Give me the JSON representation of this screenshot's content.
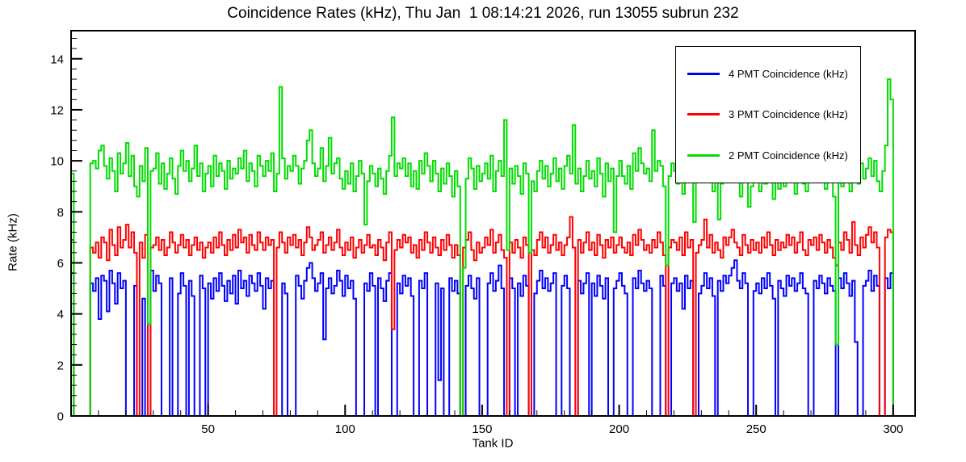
{
  "chart_data": {
    "type": "line",
    "subtype": "step-histogram",
    "title": "Coincidence Rates (kHz), Thu Jan  1 08:14:21 2026, run 13055 subrun 232",
    "xlabel": "Tank ID",
    "ylabel": "Rate (kHz)",
    "xlim": [
      0,
      308
    ],
    "ylim": [
      0,
      15.1
    ],
    "xticks_major": [
      50,
      100,
      150,
      200,
      250,
      300
    ],
    "xtick_minor_step": 10,
    "yticks_major": [
      0,
      2,
      4,
      6,
      8,
      10,
      12,
      14
    ],
    "ytick_minor_step": 0.4,
    "x_bin_width": 1,
    "grid": false,
    "legend_position": "top-right",
    "series": [
      {
        "id": "4pmt",
        "name": "4 PMT Coincidence (kHz)",
        "color": "#0000ff",
        "values": [
          5.6,
          0,
          0,
          0,
          0,
          0,
          0,
          5.2,
          4.9,
          5.4,
          3.8,
          5.5,
          5.3,
          4.1,
          5.7,
          5.2,
          4.4,
          5.6,
          5.0,
          5.3,
          0,
          0,
          0,
          5.1,
          0,
          0,
          4.6,
          0,
          0,
          5.7,
          4.9,
          5.5,
          5.2,
          0,
          0,
          0,
          5.4,
          0,
          0,
          4.8,
          5.6,
          5.1,
          0,
          5.3,
          4.7,
          0,
          0,
          5.5,
          5.0,
          0,
          5.2,
          4.6,
          5.4,
          4.9,
          5.6,
          5.1,
          4.5,
          5.3,
          4.8,
          5.5,
          4.4,
          5.7,
          5.0,
          5.3,
          4.7,
          5.5,
          5.2,
          4.9,
          5.6,
          5.1,
          4.2,
          5.4,
          5.0,
          5.3,
          0,
          0,
          0,
          5.2,
          4.8,
          0,
          0,
          0,
          5.5,
          5.1,
          4.6,
          5.3,
          5.8,
          6.0,
          5.4,
          4.9,
          5.2,
          5.6,
          3.0,
          5.0,
          5.4,
          4.8,
          5.1,
          5.7,
          5.3,
          4.7,
          5.5,
          5.0,
          5.3,
          4.6,
          0,
          0,
          0,
          5.2,
          4.9,
          5.6,
          5.1,
          0,
          5.4,
          5.0,
          4.5,
          5.3,
          5.6,
          0,
          0,
          5.2,
          4.8,
          5.5,
          5.1,
          5.4,
          4.7,
          0,
          0,
          5.3,
          5.0,
          5.6,
          0,
          0,
          0,
          5.2,
          1.4,
          5.0,
          0,
          0,
          5.4,
          4.9,
          5.3,
          4.8,
          0,
          0,
          5.1,
          5.5,
          5.0,
          4.6,
          5.4,
          0,
          0,
          0,
          5.2,
          5.6,
          4.9,
          5.3,
          5.9,
          5.0,
          0,
          0,
          5.4,
          5.0,
          0,
          5.2,
          4.7,
          5.5,
          5.1,
          0,
          0,
          4.8,
          5.3,
          5.7,
          5.0,
          5.4,
          4.9,
          5.2,
          5.6,
          0,
          0,
          5.1,
          5.5,
          5.0,
          0,
          0,
          0,
          5.3,
          4.8,
          5.2,
          5.6,
          0,
          5.2,
          4.7,
          5.5,
          5.1,
          4.6,
          5.4,
          0,
          0,
          5.0,
          5.3,
          5.6,
          5.1,
          4.8,
          0,
          0,
          5.4,
          5.0,
          5.7,
          5.2,
          4.9,
          5.3,
          5.0,
          0,
          0,
          0,
          5.5,
          5.1,
          0,
          0,
          5.2,
          5.4,
          4.9,
          5.2,
          4.2,
          5.5,
          5.0,
          5.3,
          0,
          0,
          4.8,
          5.1,
          5.6,
          5.0,
          5.4,
          4.7,
          0,
          5.3,
          4.9,
          5.5,
          5.2,
          5.5,
          5.8,
          6.1,
          5.3,
          5.0,
          5.6,
          5.2,
          0,
          0,
          4.9,
          5.2,
          4.8,
          5.4,
          5.0,
          5.6,
          5.1,
          4.6,
          0,
          5.3,
          5.0,
          4.7,
          5.5,
          5.1,
          5.4,
          4.9,
          5.2,
          5.6,
          5.0,
          4.8,
          0,
          0,
          5.3,
          5.0,
          5.5,
          5.2,
          4.8,
          5.4,
          5.1,
          4.9,
          0,
          5.4,
          5.0,
          5.6,
          5.2,
          4.7,
          5.3,
          2.9,
          0,
          0,
          5.1,
          5.3,
          5.7,
          4.9,
          5.5,
          5.1,
          0,
          0,
          5.4,
          5.0,
          5.6
        ]
      },
      {
        "id": "3pmt",
        "name": "3 PMT Coincidence (kHz)",
        "color": "#ff0000",
        "values": [
          6.9,
          0,
          0,
          0,
          0,
          0,
          0,
          6.6,
          6.4,
          6.8,
          6.2,
          7.0,
          6.8,
          6.1,
          7.3,
          6.7,
          6.3,
          7.4,
          6.6,
          6.9,
          7.5,
          6.6,
          7.2,
          6.4,
          0,
          6.8,
          6.2,
          7.1,
          0,
          6.6,
          6.7,
          7.0,
          6.5,
          6.9,
          6.3,
          6.6,
          7.2,
          6.8,
          6.4,
          6.7,
          7.1,
          6.6,
          6.9,
          6.3,
          6.7,
          7.0,
          6.5,
          6.8,
          6.2,
          6.6,
          6.8,
          6.4,
          7.0,
          6.6,
          7.2,
          6.7,
          6.3,
          6.9,
          6.5,
          7.1,
          6.6,
          7.3,
          6.8,
          7.0,
          6.4,
          7.1,
          6.7,
          6.5,
          7.2,
          6.8,
          6.5,
          7.0,
          6.7,
          6.9,
          0,
          6.6,
          7.2,
          6.8,
          6.4,
          7.0,
          6.7,
          7.1,
          6.6,
          6.9,
          6.3,
          6.8,
          7.4,
          7.0,
          6.5,
          6.7,
          6.9,
          7.2,
          6.4,
          6.7,
          7.0,
          6.5,
          6.8,
          7.3,
          6.6,
          6.3,
          6.8,
          6.5,
          7.0,
          6.2,
          6.6,
          6.9,
          6.4,
          6.7,
          7.1,
          6.6,
          6.7,
          6.3,
          6.9,
          6.6,
          6.1,
          6.8,
          7.2,
          3.4,
          6.5,
          6.9,
          6.6,
          7.1,
          6.8,
          7.0,
          6.4,
          6.7,
          6.2,
          6.9,
          6.5,
          7.2,
          6.8,
          6.4,
          7.0,
          6.6,
          6.3,
          6.9,
          6.5,
          7.1,
          6.7,
          6.2,
          6.7,
          6.3,
          0,
          6.6,
          6.9,
          7.2,
          6.5,
          6.1,
          6.8,
          6.4,
          6.6,
          7.0,
          6.7,
          7.3,
          6.4,
          6.8,
          7.1,
          6.5,
          6.2,
          0,
          6.8,
          6.4,
          6.9,
          6.6,
          6.2,
          7.0,
          6.7,
          0,
          6.5,
          6.3,
          6.9,
          7.2,
          6.6,
          7.0,
          6.4,
          6.7,
          7.1,
          6.5,
          6.8,
          6.3,
          6.7,
          7.0,
          7.8,
          6.6,
          0,
          6.9,
          6.4,
          6.8,
          7.2,
          6.5,
          6.8,
          6.3,
          7.1,
          6.7,
          6.2,
          6.9,
          6.6,
          7.0,
          6.4,
          6.7,
          7.0,
          6.6,
          6.4,
          6.8,
          6.3,
          7.1,
          6.7,
          7.3,
          6.9,
          6.5,
          6.7,
          6.4,
          6.9,
          6.6,
          7.2,
          6.8,
          6.3,
          0,
          6.6,
          6.9,
          6.8,
          6.5,
          7.0,
          6.3,
          7.2,
          6.6,
          6.9,
          0,
          6.4,
          6.7,
          6.9,
          7.7,
          6.6,
          7.1,
          6.4,
          6.8,
          6.5,
          6.2,
          7.0,
          6.7,
          7.0,
          7.3,
          6.8,
          6.6,
          6.3,
          7.1,
          6.7,
          6.4,
          6.9,
          6.5,
          6.8,
          6.4,
          7.0,
          6.6,
          7.2,
          6.7,
          6.3,
          6.9,
          6.5,
          6.8,
          6.6,
          7.1,
          6.7,
          7.0,
          6.4,
          6.8,
          7.2,
          6.5,
          6.3,
          6.9,
          6.7,
          7.0,
          6.5,
          7.1,
          6.8,
          6.4,
          6.9,
          6.6,
          6.2,
          5.9,
          6.8,
          6.5,
          7.2,
          6.9,
          6.4,
          7.6,
          6.7,
          6.3,
          7.0,
          6.6,
          7.1,
          7.4,
          6.8,
          7.2,
          6.6,
          0,
          0,
          7.0,
          7.3,
          7.2
        ]
      },
      {
        "id": "2pmt",
        "name": "2 PMT Coincidence (kHz)",
        "color": "#00dd00",
        "values": [
          9.5,
          0,
          0,
          0,
          0,
          0,
          0,
          9.9,
          10.0,
          9.7,
          10.4,
          10.6,
          9.8,
          9.3,
          10.1,
          9.6,
          8.8,
          10.3,
          9.5,
          9.9,
          10.7,
          9.4,
          10.2,
          9.0,
          8.6,
          9.8,
          9.2,
          10.5,
          3.6,
          9.6,
          9.7,
          10.3,
          9.1,
          9.9,
          8.9,
          9.5,
          10.1,
          9.3,
          8.7,
          9.8,
          10.4,
          9.6,
          10.0,
          9.2,
          9.7,
          10.6,
          9.4,
          9.9,
          8.8,
          9.5,
          9.8,
          9.0,
          10.2,
          9.4,
          9.9,
          9.6,
          8.9,
          10.0,
          9.3,
          9.7,
          9.5,
          10.1,
          9.7,
          10.4,
          9.2,
          9.9,
          9.6,
          9.0,
          10.2,
          9.8,
          9.4,
          10.0,
          9.6,
          10.3,
          8.8,
          9.5,
          12.9,
          10.1,
          9.3,
          9.8,
          9.6,
          10.2,
          9.8,
          9.1,
          9.7,
          10.0,
          10.8,
          11.2,
          9.9,
          9.4,
          9.7,
          10.5,
          9.2,
          9.8,
          10.9,
          9.5,
          9.9,
          10.1,
          9.3,
          8.9,
          9.6,
          9.1,
          9.9,
          8.8,
          9.4,
          10.0,
          9.5,
          7.5,
          9.2,
          9.8,
          9.5,
          9.0,
          9.7,
          9.3,
          8.7,
          9.6,
          10.2,
          11.7,
          9.4,
          9.9,
          9.7,
          10.1,
          9.4,
          9.9,
          9.0,
          9.6,
          8.9,
          10.0,
          9.5,
          10.3,
          9.8,
          9.2,
          10.0,
          9.5,
          8.8,
          9.7,
          9.1,
          9.9,
          9.4,
          8.6,
          9.6,
          9.0,
          0,
          5.8,
          9.3,
          10.1,
          9.7,
          8.9,
          9.8,
          9.2,
          9.5,
          9.9,
          9.3,
          10.2,
          8.8,
          9.6,
          10.0,
          9.4,
          11.6,
          6.5,
          9.7,
          9.1,
          9.8,
          9.4,
          8.7,
          9.9,
          9.5,
          6.4,
          9.2,
          8.8,
          9.6,
          10.0,
          9.3,
          9.8,
          9.0,
          9.5,
          10.1,
          9.2,
          9.7,
          8.9,
          9.8,
          10.2,
          9.5,
          11.4,
          9.1,
          9.7,
          8.8,
          9.4,
          10.0,
          9.3,
          9.6,
          9.0,
          10.1,
          9.5,
          8.6,
          9.9,
          9.2,
          9.7,
          7.2,
          9.4,
          10.0,
          9.4,
          9.1,
          9.8,
          8.9,
          10.3,
          9.6,
          10.5,
          9.9,
          9.5,
          9.7,
          9.2,
          11.2,
          9.6,
          10.0,
          9.8,
          9.0,
          5.9,
          9.4,
          9.9,
          9.6,
          9.1,
          9.9,
          8.7,
          10.1,
          9.3,
          9.8,
          7.6,
          9.2,
          9.5,
          9.8,
          10.2,
          9.4,
          9.9,
          8.8,
          9.5,
          7.7,
          9.1,
          10.0,
          9.6,
          9.7,
          10.0,
          9.5,
          9.2,
          8.6,
          9.9,
          9.4,
          8.2,
          9.0,
          9.6,
          9.3,
          8.8,
          9.6,
          9.1,
          9.8,
          9.4,
          8.5,
          9.2,
          8.9,
          9.5,
          9.0,
          9.7,
          9.3,
          9.9,
          8.7,
          9.4,
          10.0,
          9.1,
          8.8,
          9.6,
          9.5,
          9.9,
          9.2,
          10.1,
          9.7,
          8.9,
          9.6,
          9.3,
          8.6,
          2.8,
          9.4,
          9.0,
          9.8,
          9.5,
          8.8,
          10.2,
          9.6,
          9.1,
          9.9,
          9.3,
          9.7,
          10.1,
          9.4,
          10.0,
          9.2,
          8.8,
          9.6,
          10.6,
          13.2,
          12.4
        ]
      }
    ]
  }
}
